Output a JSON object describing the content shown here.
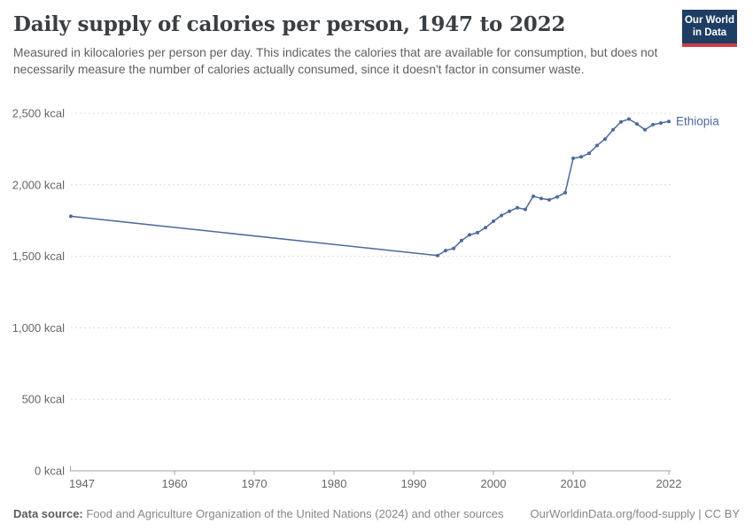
{
  "header": {
    "title": "Daily supply of calories per person, 1947 to 2022",
    "subtitle": "Measured in kilocalories per person per day. This indicates the calories that are available for consumption, but does not necessarily measure the number of calories actually consumed, since it doesn't factor in consumer waste."
  },
  "logo": {
    "line1": "Our World",
    "line2": "in Data",
    "bg_color": "#1d3d63",
    "bar_color": "#cf3b46"
  },
  "chart_data": {
    "type": "line",
    "title": "Daily supply of calories per person, 1947 to 2022",
    "unit": "kcal",
    "xlabel": "",
    "ylabel": "",
    "xlim": [
      1947,
      2022
    ],
    "ylim": [
      0,
      2500
    ],
    "grid": "dashed-horizontal",
    "legend_position": "end-of-line-label",
    "x_ticks": [
      1947,
      1960,
      1970,
      1980,
      1990,
      2000,
      2010,
      2022
    ],
    "y_ticks": [
      0,
      500,
      1000,
      1500,
      2000,
      2500
    ],
    "y_tick_labels": [
      "0 kcal",
      "500 kcal",
      "1,000 kcal",
      "1,500 kcal",
      "2,000 kcal",
      "2,500 kcal"
    ],
    "series": [
      {
        "name": "Ethiopia",
        "color": "#4c6a9c",
        "points": [
          [
            1947,
            1780
          ],
          [
            1993,
            1505
          ],
          [
            1994,
            1540
          ],
          [
            1995,
            1555
          ],
          [
            1996,
            1610
          ],
          [
            1997,
            1650
          ],
          [
            1998,
            1665
          ],
          [
            1999,
            1700
          ],
          [
            2000,
            1745
          ],
          [
            2001,
            1785
          ],
          [
            2002,
            1815
          ],
          [
            2003,
            1840
          ],
          [
            2004,
            1828
          ],
          [
            2005,
            1920
          ],
          [
            2006,
            1905
          ],
          [
            2007,
            1895
          ],
          [
            2008,
            1915
          ],
          [
            2009,
            1945
          ],
          [
            2010,
            2185
          ],
          [
            2011,
            2195
          ],
          [
            2012,
            2220
          ],
          [
            2013,
            2275
          ],
          [
            2014,
            2320
          ],
          [
            2015,
            2385
          ],
          [
            2016,
            2440
          ],
          [
            2017,
            2460
          ],
          [
            2018,
            2425
          ],
          [
            2019,
            2385
          ],
          [
            2020,
            2420
          ],
          [
            2021,
            2432
          ],
          [
            2022,
            2443
          ]
        ]
      }
    ],
    "colors": {
      "gridline": "#dcdcdc",
      "axis": "#a3a3a3",
      "tick_label": "#666666"
    }
  },
  "footer": {
    "datasource_label": "Data source:",
    "datasource_text": " Food and Agriculture Organization of the United Nations (2024) and other sources",
    "credit": "OurWorldinData.org/food-supply | CC BY"
  }
}
